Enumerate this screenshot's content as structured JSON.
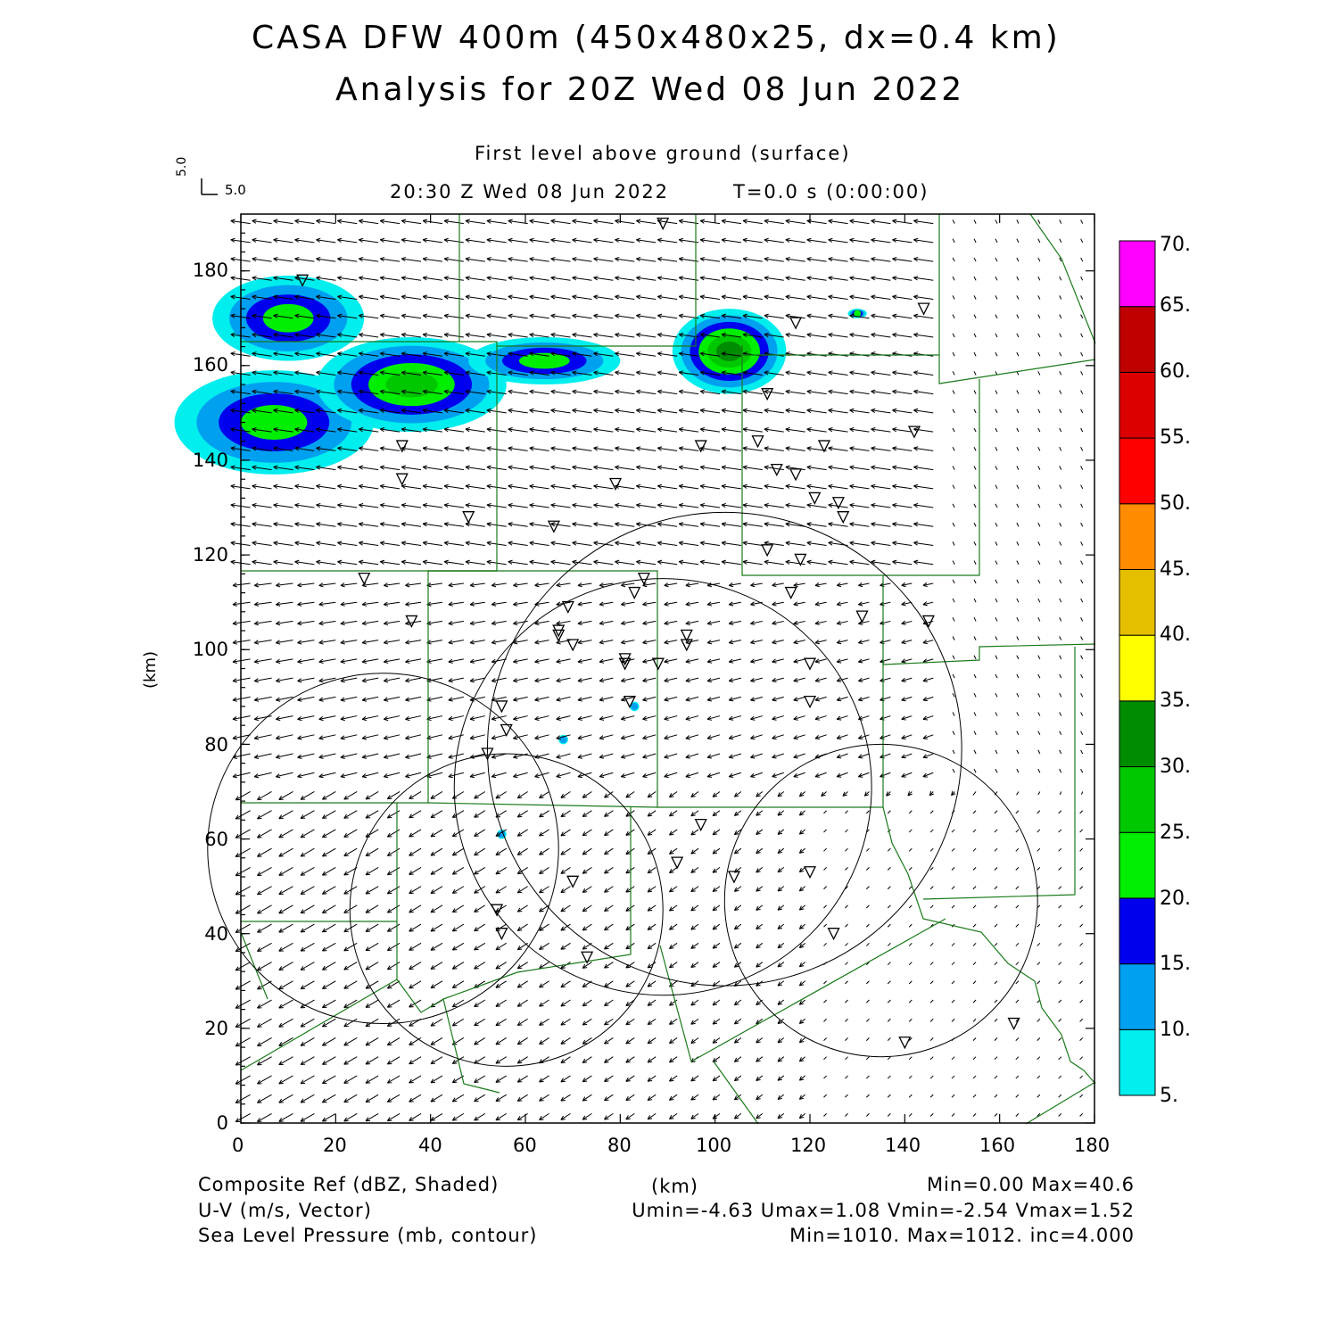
{
  "header": {
    "title_line1": "CASA DFW 400m (450x480x25, dx=0.4 km)",
    "title_line2": "Analysis for 20Z Wed 08 Jun 2022",
    "level": "First level above ground (surface)",
    "valid_time": "20:30 Z Wed 08 Jun 2022",
    "time_offset": "T=0.0 s (0:00:00)",
    "vector_key_x": "5.0",
    "vector_key_y": "5.0"
  },
  "axes": {
    "x_unit": "(km)",
    "y_unit": "(km)",
    "x_ticks": [
      "0",
      "20",
      "40",
      "60",
      "80",
      "100",
      "120",
      "140",
      "160",
      "180"
    ],
    "y_ticks": [
      "0",
      "20",
      "40",
      "60",
      "80",
      "100",
      "120",
      "140",
      "160",
      "180"
    ],
    "x_range": [
      0,
      180
    ],
    "y_range": [
      0,
      192
    ]
  },
  "colorbar": {
    "labels": [
      "5.",
      "10.",
      "15.",
      "20.",
      "25.",
      "30.",
      "35.",
      "40.",
      "45.",
      "50.",
      "55.",
      "60.",
      "65.",
      "70."
    ],
    "colors": [
      "#00eeee",
      "#00a0f0",
      "#0000ee",
      "#00ee00",
      "#00c800",
      "#008c00",
      "#ffff00",
      "#e6be00",
      "#ff8c00",
      "#ff0000",
      "#dc0000",
      "#c00000",
      "#ff00ff"
    ]
  },
  "footer": {
    "field1_label": "Composite Ref (dBZ, Shaded)",
    "field1_stats": "Min=0.00 Max=40.6",
    "field2_label": "U-V (m/s, Vector)",
    "field2_stats": "Umin=-4.63 Umax=1.08 Vmin=-2.54 Vmax=1.52",
    "field3_label": "Sea Level Pressure (mb, contour)",
    "field3_stats": "Min=1010. Max=1012. inc=4.000"
  },
  "map_data": {
    "station_markers_km": [
      [
        13,
        178
      ],
      [
        89,
        190
      ],
      [
        117,
        169
      ],
      [
        144,
        172
      ],
      [
        111,
        154
      ],
      [
        142,
        146
      ],
      [
        97,
        143
      ],
      [
        109,
        144
      ],
      [
        123,
        143
      ],
      [
        34,
        143
      ],
      [
        34,
        136
      ],
      [
        79,
        135
      ],
      [
        113,
        138
      ],
      [
        117,
        137
      ],
      [
        121,
        132
      ],
      [
        126,
        131
      ],
      [
        127,
        128
      ],
      [
        48,
        128
      ],
      [
        66,
        126
      ],
      [
        111,
        121
      ],
      [
        118,
        119
      ],
      [
        26,
        115
      ],
      [
        85,
        115
      ],
      [
        116,
        112
      ],
      [
        36,
        106
      ],
      [
        83,
        112
      ],
      [
        69,
        109
      ],
      [
        131,
        107
      ],
      [
        145,
        106
      ],
      [
        67,
        104
      ],
      [
        67,
        103
      ],
      [
        70,
        101
      ],
      [
        94,
        103
      ],
      [
        94,
        101
      ],
      [
        81,
        98
      ],
      [
        81,
        97
      ],
      [
        88,
        97
      ],
      [
        120,
        97
      ],
      [
        82,
        89
      ],
      [
        120,
        89
      ],
      [
        55,
        88
      ],
      [
        56,
        83
      ],
      [
        52,
        78
      ],
      [
        97,
        63
      ],
      [
        92,
        55
      ],
      [
        70,
        51
      ],
      [
        104,
        52
      ],
      [
        120,
        53
      ],
      [
        54,
        45
      ],
      [
        55,
        40
      ],
      [
        125,
        40
      ],
      [
        73,
        35
      ],
      [
        163,
        21
      ],
      [
        140,
        17
      ]
    ],
    "pressure_circles_km": [
      [
        30,
        58,
        37
      ],
      [
        56,
        45,
        33
      ],
      [
        89,
        71,
        44
      ],
      [
        102,
        79,
        50
      ],
      [
        135,
        47,
        33
      ]
    ],
    "reflectivity_cells_km": [
      [
        10,
        170,
        16,
        9,
        22
      ],
      [
        7,
        148,
        21,
        11,
        24
      ],
      [
        36,
        156,
        20,
        10,
        28
      ],
      [
        64,
        161,
        16,
        5,
        22
      ],
      [
        103,
        163,
        12,
        9,
        32
      ],
      [
        130,
        171,
        2,
        1,
        20
      ],
      [
        83,
        88,
        1,
        1,
        12
      ],
      [
        68,
        81,
        1,
        1,
        10
      ],
      [
        55,
        61,
        1,
        1,
        12
      ]
    ]
  }
}
